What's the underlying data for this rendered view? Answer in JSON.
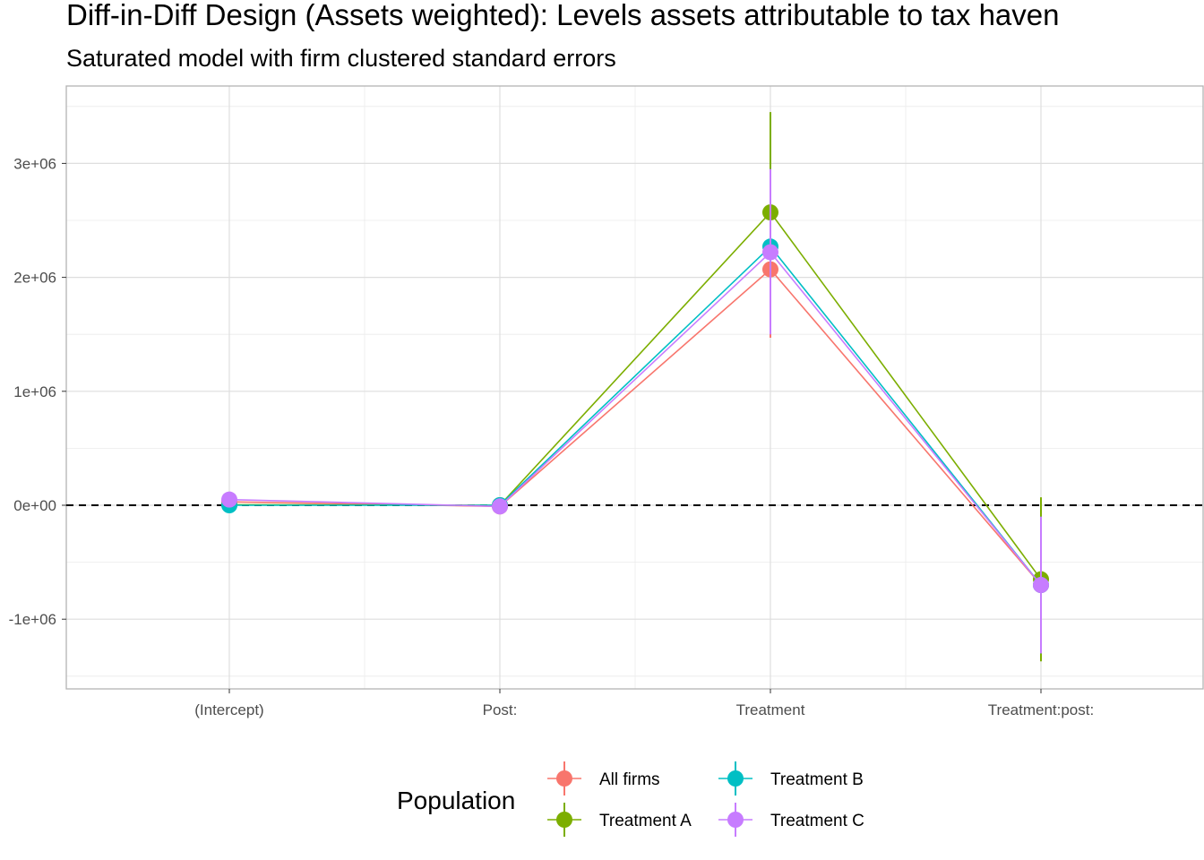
{
  "chart_data": {
    "type": "scatter",
    "title": "Diff-in-Diff Design (Assets weighted): Levels assets attributable to tax haven",
    "subtitle": "Saturated model with firm clustered standard errors",
    "categories": [
      "(Intercept)",
      "Post:",
      "Treatment",
      "Treatment:post:"
    ],
    "ylim": [
      -1500000.0,
      3500000.0
    ],
    "y_ticks": [
      -1000000,
      0,
      1000000,
      2000000,
      3000000
    ],
    "y_tick_labels": [
      "-1e+06",
      "0e+00",
      "1e+06",
      "2e+06",
      "3e+06"
    ],
    "reference_line": 0,
    "grid": true,
    "legend": {
      "title": "Population",
      "position": "bottom"
    },
    "series": [
      {
        "name": "All firms",
        "color": "#F8766D",
        "values": [
          30000,
          -10000,
          2070000,
          -700000
        ],
        "lower": [
          20000,
          -30000,
          1470000,
          -1300000
        ],
        "upper": [
          40000,
          10000,
          2670000,
          -100000
        ]
      },
      {
        "name": "Treatment A",
        "color": "#7CAE00",
        "values": [
          5000,
          0,
          2570000,
          -650000
        ],
        "lower": [
          -5000,
          -20000,
          1700000,
          -1370000
        ],
        "upper": [
          15000,
          20000,
          3450000,
          70000
        ]
      },
      {
        "name": "Treatment B",
        "color": "#00BFC4",
        "values": [
          0,
          0,
          2270000,
          -700000
        ],
        "lower": [
          -10000,
          -20000,
          1600000,
          -1300000
        ],
        "upper": [
          10000,
          20000,
          2950000,
          -100000
        ]
      },
      {
        "name": "Treatment C",
        "color": "#C77CFF",
        "values": [
          50000,
          -10000,
          2220000,
          -700000
        ],
        "lower": [
          40000,
          -30000,
          1500000,
          -1300000
        ],
        "upper": [
          60000,
          10000,
          2950000,
          -100000
        ]
      }
    ]
  }
}
